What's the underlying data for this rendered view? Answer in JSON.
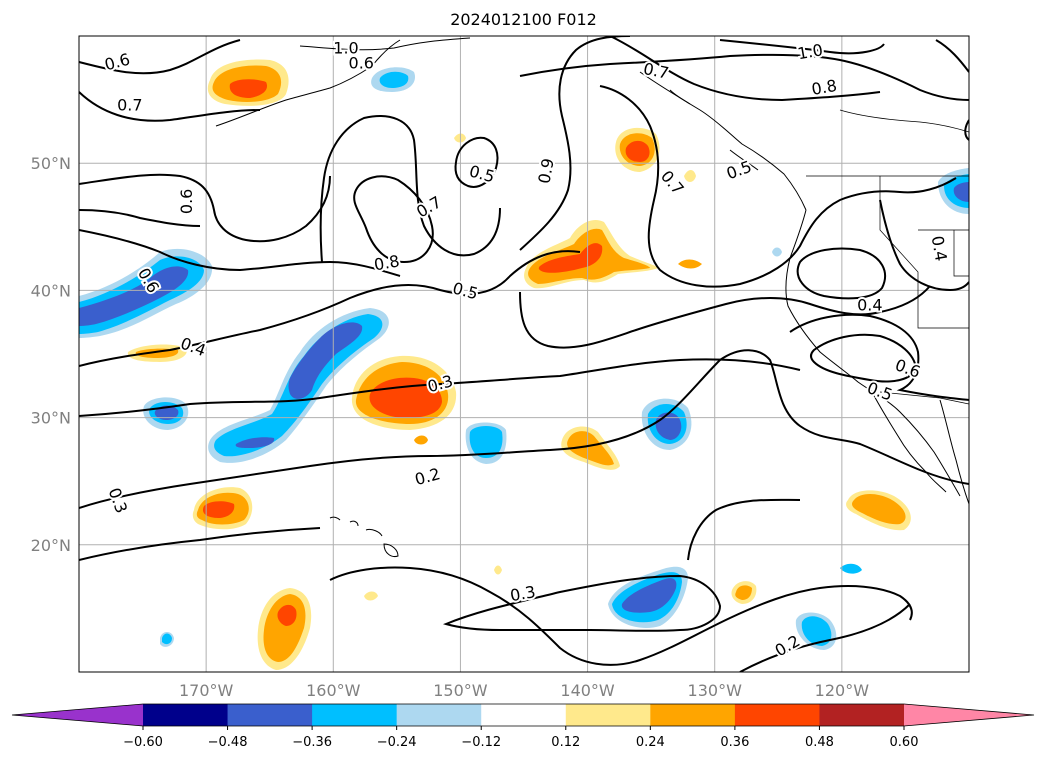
{
  "title": "2024012100 F012",
  "map": {
    "lat_labels": [
      {
        "lat": 50,
        "text": "50°N"
      },
      {
        "lat": 40,
        "text": "40°N"
      },
      {
        "lat": 30,
        "text": "30°N"
      },
      {
        "lat": 20,
        "text": "20°N"
      }
    ],
    "lon_labels": [
      {
        "lon": -170,
        "text": "170°W"
      },
      {
        "lon": -160,
        "text": "160°W"
      },
      {
        "lon": -150,
        "text": "150°W"
      },
      {
        "lon": -140,
        "text": "140°W"
      },
      {
        "lon": -130,
        "text": "130°W"
      },
      {
        "lon": -120,
        "text": "120°W"
      }
    ],
    "extent": {
      "lon_min": -180,
      "lon_max": -110,
      "lat_min": 10,
      "lat_max": 60
    },
    "contour_labels": [
      {
        "text": "0.6",
        "lon": -177.0,
        "lat": 58.0,
        "angle": 15
      },
      {
        "text": "1.0",
        "lon": -159.0,
        "lat": 59.1,
        "angle": 0
      },
      {
        "text": "0.6",
        "lon": -157.8,
        "lat": 57.9,
        "angle": 0
      },
      {
        "text": "0.7",
        "lon": -176.0,
        "lat": 54.6,
        "angle": 0
      },
      {
        "text": "0.6",
        "lon": -171.6,
        "lat": 47.0,
        "angle": 90
      },
      {
        "text": "0.6",
        "lon": -174.5,
        "lat": 40.8,
        "angle": -60
      },
      {
        "text": "0.4",
        "lon": -171.0,
        "lat": 35.6,
        "angle": -20
      },
      {
        "text": "0.3",
        "lon": -176.9,
        "lat": 23.5,
        "angle": -70
      },
      {
        "text": "0.5",
        "lon": -148.3,
        "lat": 49.2,
        "angle": -15
      },
      {
        "text": "0.7",
        "lon": -152.5,
        "lat": 46.6,
        "angle": 30
      },
      {
        "text": "0.8",
        "lon": -155.8,
        "lat": 42.2,
        "angle": 10
      },
      {
        "text": "0.5",
        "lon": -149.6,
        "lat": 40.0,
        "angle": -15
      },
      {
        "text": "0.9",
        "lon": -143.3,
        "lat": 49.4,
        "angle": 80
      },
      {
        "text": "0.7",
        "lon": -134.6,
        "lat": 57.3,
        "angle": -12
      },
      {
        "text": "1.0",
        "lon": -122.5,
        "lat": 58.8,
        "angle": 10
      },
      {
        "text": "0.8",
        "lon": -121.4,
        "lat": 56.0,
        "angle": 10
      },
      {
        "text": "0.5",
        "lon": -128.1,
        "lat": 49.5,
        "angle": 20
      },
      {
        "text": "0.7",
        "lon": -133.3,
        "lat": 48.5,
        "angle": -50
      },
      {
        "text": "0.3",
        "lon": -151.6,
        "lat": 32.7,
        "angle": 15
      },
      {
        "text": "0.2",
        "lon": -152.6,
        "lat": 25.4,
        "angle": 15
      },
      {
        "text": "0.3",
        "lon": -145.1,
        "lat": 16.2,
        "angle": 10
      },
      {
        "text": "0.2",
        "lon": -124.3,
        "lat": 12.1,
        "angle": 30
      },
      {
        "text": "0.4",
        "lon": -112.3,
        "lat": 43.3,
        "angle": -80
      },
      {
        "text": "0.4",
        "lon": -117.8,
        "lat": 38.9,
        "angle": 0
      },
      {
        "text": "0.6",
        "lon": -114.8,
        "lat": 33.9,
        "angle": -20
      },
      {
        "text": "0.5",
        "lon": -117.0,
        "lat": 32.1,
        "angle": -20
      }
    ]
  },
  "colorbar": {
    "levels": [
      -0.72,
      -0.6,
      -0.48,
      -0.36,
      -0.24,
      -0.12,
      0.12,
      0.24,
      0.36,
      0.48,
      0.6,
      0.72
    ],
    "tick_labels": [
      "−0.60",
      "−0.48",
      "−0.36",
      "−0.24",
      "−0.12",
      "0.12",
      "0.24",
      "0.36",
      "0.48",
      "0.60"
    ],
    "colors": [
      "#9932cc",
      "#00008b",
      "#3a5fcd",
      "#00bfff",
      "#add8f0",
      "#ffffff",
      "#ffe98c",
      "#ffa500",
      "#ff4500",
      "#b22222",
      "#ff86a6"
    ],
    "extend": "both"
  },
  "colors": {
    "contour": "#000000",
    "grid": "#b0b0b0",
    "coast": "#000000"
  }
}
